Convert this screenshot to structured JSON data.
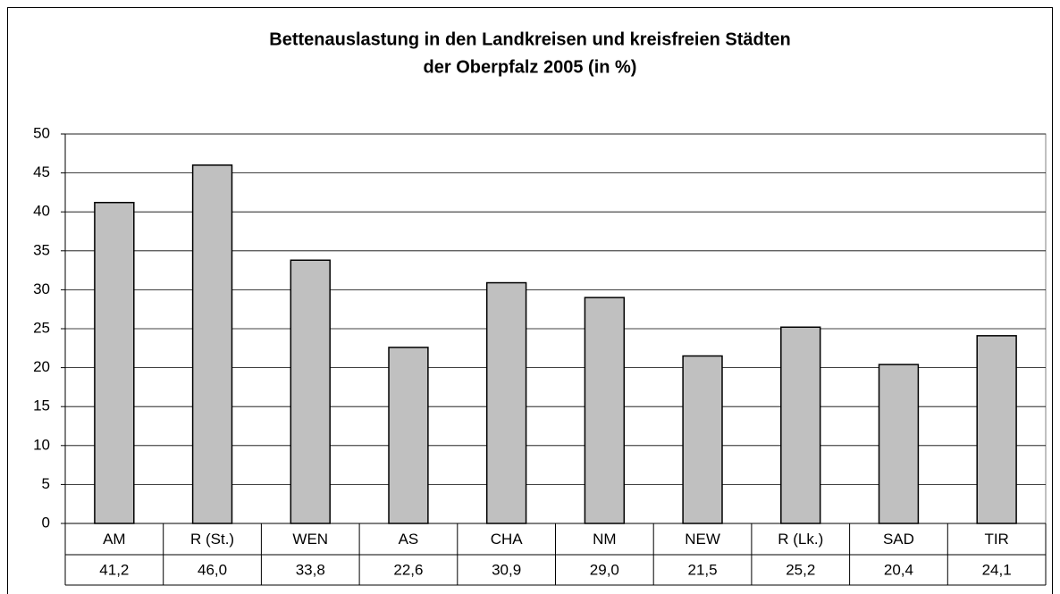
{
  "chart_data": {
    "type": "bar",
    "title": [
      "Bettenauslastung in den Landkreisen und kreisfreien Städten",
      "der Oberpfalz 2005 (in %)"
    ],
    "categories": [
      "AM",
      "R (St.)",
      "WEN",
      "AS",
      "CHA",
      "NM",
      "NEW",
      "R (Lk.)",
      "SAD",
      "TIR"
    ],
    "values": [
      41.2,
      46.0,
      33.8,
      22.6,
      30.9,
      29.0,
      21.5,
      25.2,
      20.4,
      24.1
    ],
    "value_labels": [
      "41,2",
      "46,0",
      "33,8",
      "22,6",
      "30,9",
      "29,0",
      "21,5",
      "25,2",
      "20,4",
      "24,1"
    ],
    "color": "#c0c0c0",
    "ylim": [
      0,
      50
    ],
    "yticks": [
      0,
      5,
      10,
      15,
      20,
      25,
      30,
      35,
      40,
      45,
      50
    ],
    "grid": true
  }
}
